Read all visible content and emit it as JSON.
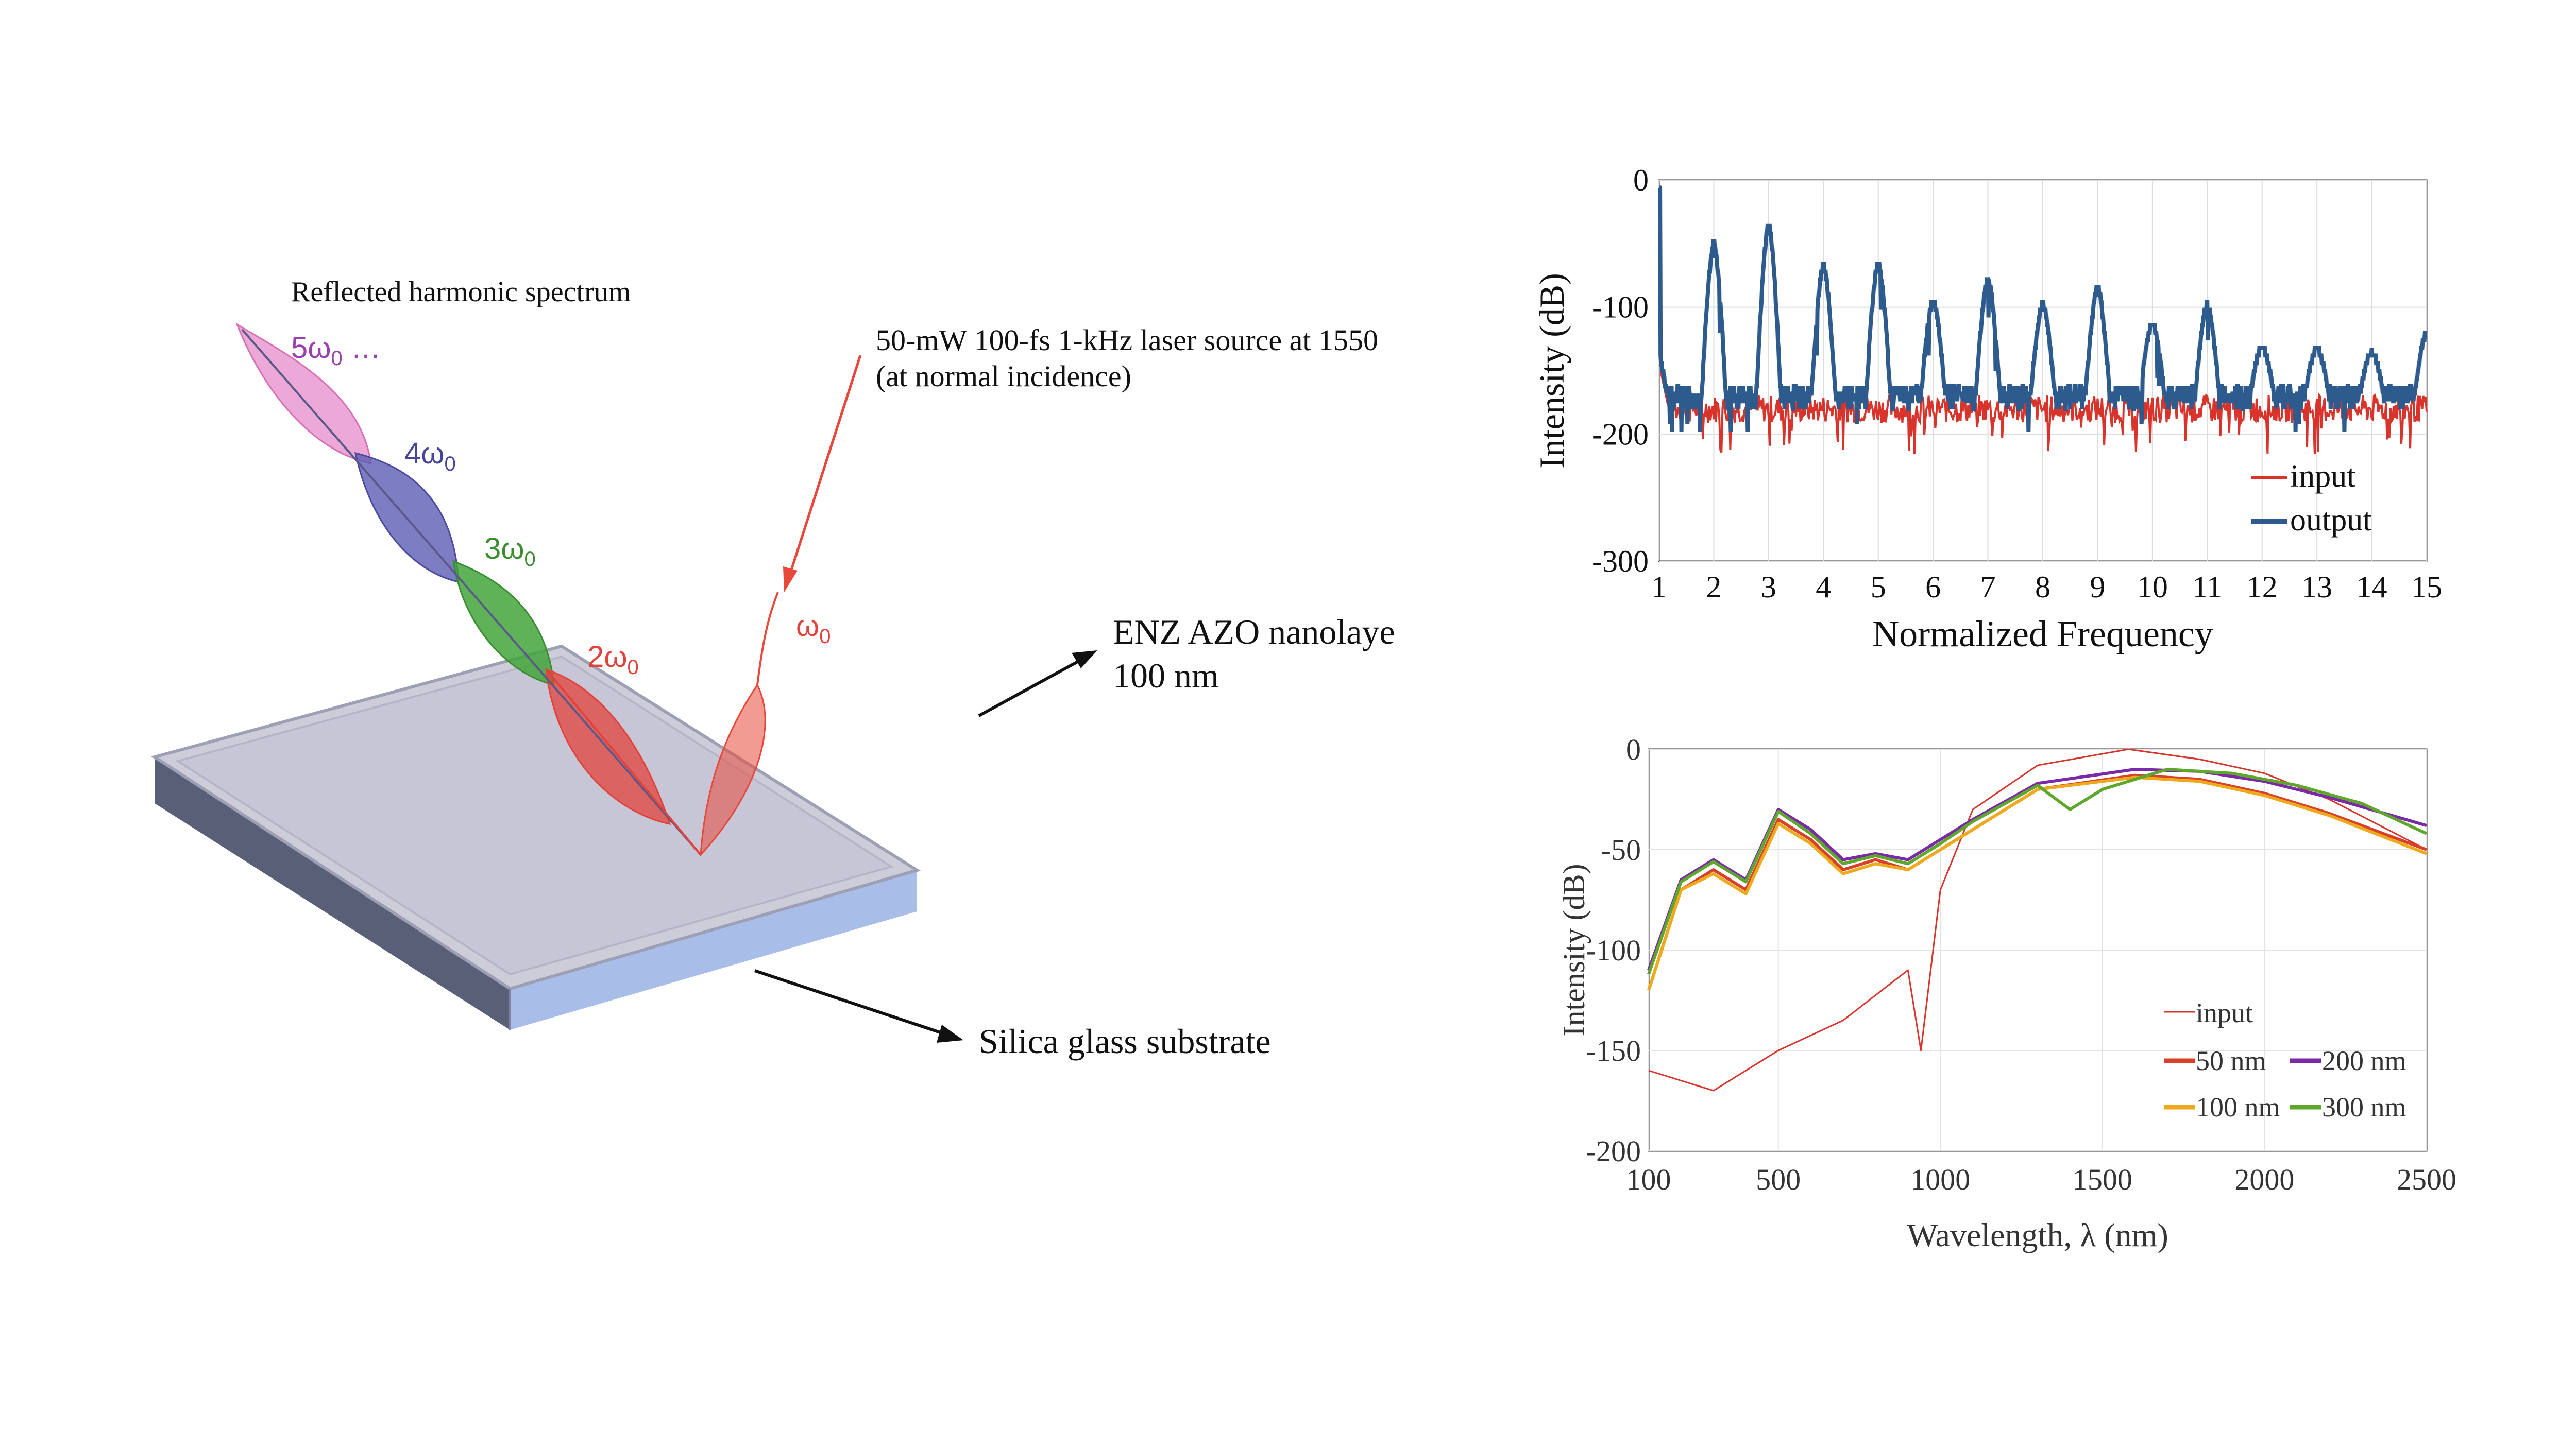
{
  "colors": {
    "pulse_red": "#e8483a",
    "harm_pink": "#e58bc8",
    "harm_blue": "#5c5cb4",
    "harm_green": "#43a53a",
    "harm_red": "#e2423a",
    "label_purple": "#9a3fb0",
    "label_blue": "#45459a",
    "label_green": "#3a8e30",
    "label_red": "#e2423a",
    "top_face": "#c9c9d8",
    "side_face_front": "#a8bde8",
    "side_face_left": "#5a5f78",
    "chart_input": "#d9342b",
    "chart_output": "#2e5b8e",
    "c50": "#d9402a",
    "c100": "#efaa1c",
    "c200": "#7a2aa6",
    "c300": "#5fa72a"
  },
  "diagram": {
    "reflected_title": "Reflected harmonic spectrum",
    "laser_line1": "50-mW 100-fs 1-kHz laser source at 1550",
    "laser_line2": "(at normal incidence)",
    "harmonics": {
      "h5": "5ω",
      "h5_sub": "0",
      "h5_tail": " …",
      "h4": "4ω",
      "h4_sub": "0",
      "h3": "3ω",
      "h3_sub": "0",
      "h2": "2ω",
      "h2_sub": "0",
      "w0": "ω",
      "w0_sub": "0"
    },
    "enz_line1": "ENZ AZO nanolaye",
    "enz_line2": "100 nm",
    "substrate_label": "Silica glass substrate"
  },
  "chart_data": [
    {
      "type": "line",
      "title": "",
      "xlabel": "Normalized Frequency",
      "ylabel": "Intensity (dB)",
      "xlim": [
        1,
        15
      ],
      "ylim": [
        -300,
        0
      ],
      "x_ticks": [
        "1",
        "2",
        "3",
        "4",
        "5",
        "6",
        "7",
        "8",
        "9",
        "10",
        "11",
        "12",
        "13",
        "14",
        "15"
      ],
      "y_ticks": [
        "0",
        "-100",
        "-200",
        "-300"
      ],
      "grid": true,
      "legend": "bottom-right",
      "series": [
        {
          "name": "input",
          "noise_floor": -180
        },
        {
          "name": "output",
          "noise_floor": -170,
          "peaks": [
            {
              "x": 2,
              "y": -50
            },
            {
              "x": 3,
              "y": -35
            },
            {
              "x": 4,
              "y": -68
            },
            {
              "x": 5,
              "y": -65
            },
            {
              "x": 6,
              "y": -95
            },
            {
              "x": 7,
              "y": -78
            },
            {
              "x": 8,
              "y": -98
            },
            {
              "x": 9,
              "y": -85
            },
            {
              "x": 10,
              "y": -112
            },
            {
              "x": 11,
              "y": -98
            },
            {
              "x": 12,
              "y": -130
            },
            {
              "x": 13,
              "y": -132
            },
            {
              "x": 14,
              "y": -135
            },
            {
              "x": 15,
              "y": -120
            }
          ]
        }
      ]
    },
    {
      "type": "line",
      "title": "",
      "xlabel": "Wavelength, λ (nm)",
      "ylabel": "Intensity (dB)",
      "xlim": [
        100,
        2500
      ],
      "ylim": [
        -200,
        0
      ],
      "x_ticks": [
        "100",
        "500",
        "1000",
        "1500",
        "2000",
        "2500"
      ],
      "y_ticks": [
        "0",
        "-50",
        "-100",
        "-150",
        "-200"
      ],
      "grid": true,
      "legend": "bottom-right",
      "series": [
        {
          "name": "input",
          "points": [
            [
              100,
              -160
            ],
            [
              300,
              -170
            ],
            [
              500,
              -150
            ],
            [
              700,
              -135
            ],
            [
              900,
              -110
            ],
            [
              940,
              -150
            ],
            [
              1000,
              -70
            ],
            [
              1100,
              -30
            ],
            [
              1300,
              -8
            ],
            [
              1580,
              0
            ],
            [
              1800,
              -5
            ],
            [
              2000,
              -12
            ],
            [
              2200,
              -25
            ],
            [
              2500,
              -50
            ]
          ]
        },
        {
          "name": "50 nm",
          "points": [
            [
              100,
              -120
            ],
            [
              200,
              -70
            ],
            [
              300,
              -60
            ],
            [
              400,
              -70
            ],
            [
              500,
              -35
            ],
            [
              600,
              -45
            ],
            [
              700,
              -60
            ],
            [
              800,
              -55
            ],
            [
              900,
              -60
            ],
            [
              1000,
              -50
            ],
            [
              1100,
              -40
            ],
            [
              1300,
              -20
            ],
            [
              1600,
              -13
            ],
            [
              1800,
              -15
            ],
            [
              2000,
              -22
            ],
            [
              2200,
              -32
            ],
            [
              2500,
              -50
            ]
          ]
        },
        {
          "name": "100 nm",
          "points": [
            [
              100,
              -120
            ],
            [
              200,
              -70
            ],
            [
              300,
              -62
            ],
            [
              400,
              -72
            ],
            [
              500,
              -37
            ],
            [
              600,
              -47
            ],
            [
              700,
              -62
            ],
            [
              800,
              -57
            ],
            [
              900,
              -60
            ],
            [
              1000,
              -50
            ],
            [
              1100,
              -40
            ],
            [
              1300,
              -20
            ],
            [
              1600,
              -14
            ],
            [
              1800,
              -16
            ],
            [
              2000,
              -23
            ],
            [
              2200,
              -33
            ],
            [
              2500,
              -52
            ]
          ]
        },
        {
          "name": "200 nm",
          "points": [
            [
              100,
              -110
            ],
            [
              200,
              -65
            ],
            [
              300,
              -55
            ],
            [
              400,
              -65
            ],
            [
              500,
              -30
            ],
            [
              600,
              -40
            ],
            [
              700,
              -55
            ],
            [
              800,
              -52
            ],
            [
              900,
              -55
            ],
            [
              1000,
              -45
            ],
            [
              1100,
              -35
            ],
            [
              1300,
              -17
            ],
            [
              1600,
              -10
            ],
            [
              1800,
              -11
            ],
            [
              2000,
              -16
            ],
            [
              2200,
              -24
            ],
            [
              2500,
              -38
            ]
          ]
        },
        {
          "name": "300 nm",
          "points": [
            [
              100,
              -112
            ],
            [
              200,
              -66
            ],
            [
              300,
              -56
            ],
            [
              400,
              -66
            ],
            [
              500,
              -31
            ],
            [
              600,
              -42
            ],
            [
              700,
              -57
            ],
            [
              800,
              -53
            ],
            [
              900,
              -57
            ],
            [
              1000,
              -47
            ],
            [
              1100,
              -36
            ],
            [
              1300,
              -18
            ],
            [
              1400,
              -30
            ],
            [
              1500,
              -20
            ],
            [
              1700,
              -10
            ],
            [
              1900,
              -12
            ],
            [
              2100,
              -18
            ],
            [
              2300,
              -27
            ],
            [
              2500,
              -42
            ]
          ]
        }
      ]
    }
  ]
}
